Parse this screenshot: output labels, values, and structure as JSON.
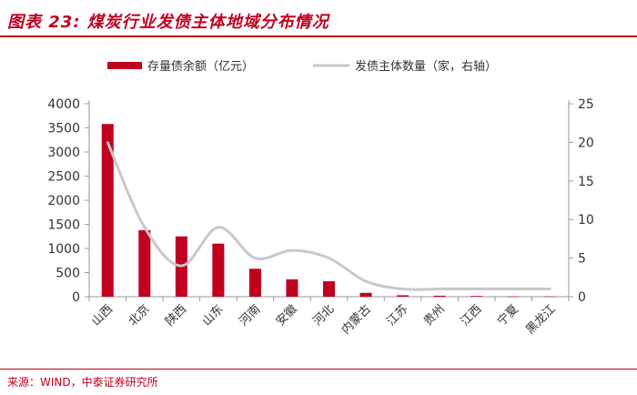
{
  "figure": {
    "title": "图表 23: 煤炭行业发债主体地域分布情况",
    "source": "来源：WIND，中泰证券研究所"
  },
  "colors": {
    "accent": "#c0001e",
    "bar": "#c0001e",
    "line": "#c8c8c8",
    "axis": "#9a9a9a"
  },
  "chart_data": {
    "type": "bar",
    "categories": [
      "山西",
      "北京",
      "陕西",
      "山东",
      "河南",
      "安徽",
      "河北",
      "内蒙古",
      "江苏",
      "贵州",
      "江西",
      "宁夏",
      "黑龙江"
    ],
    "series": [
      {
        "name": "存量债余额（亿元）",
        "type": "bar",
        "axis": "left",
        "values": [
          3580,
          1380,
          1250,
          1100,
          580,
          360,
          320,
          80,
          30,
          20,
          15,
          5,
          5
        ]
      },
      {
        "name": "发债主体数量（家，右轴）",
        "type": "line",
        "axis": "right",
        "smooth": true,
        "values": [
          20,
          9,
          4,
          9,
          5,
          6,
          5,
          2,
          1,
          1,
          1,
          1,
          1
        ]
      }
    ],
    "ylim_left": [
      0,
      4000
    ],
    "yticks_left": [
      "4000",
      "3500",
      "3000",
      "2500",
      "2000",
      "1500",
      "1000",
      "500",
      "0"
    ],
    "ylim_right": [
      0,
      25
    ],
    "yticks_right": [
      "25",
      "20",
      "15",
      "10",
      "5",
      "0"
    ],
    "grid": false,
    "legend": "top-center"
  }
}
